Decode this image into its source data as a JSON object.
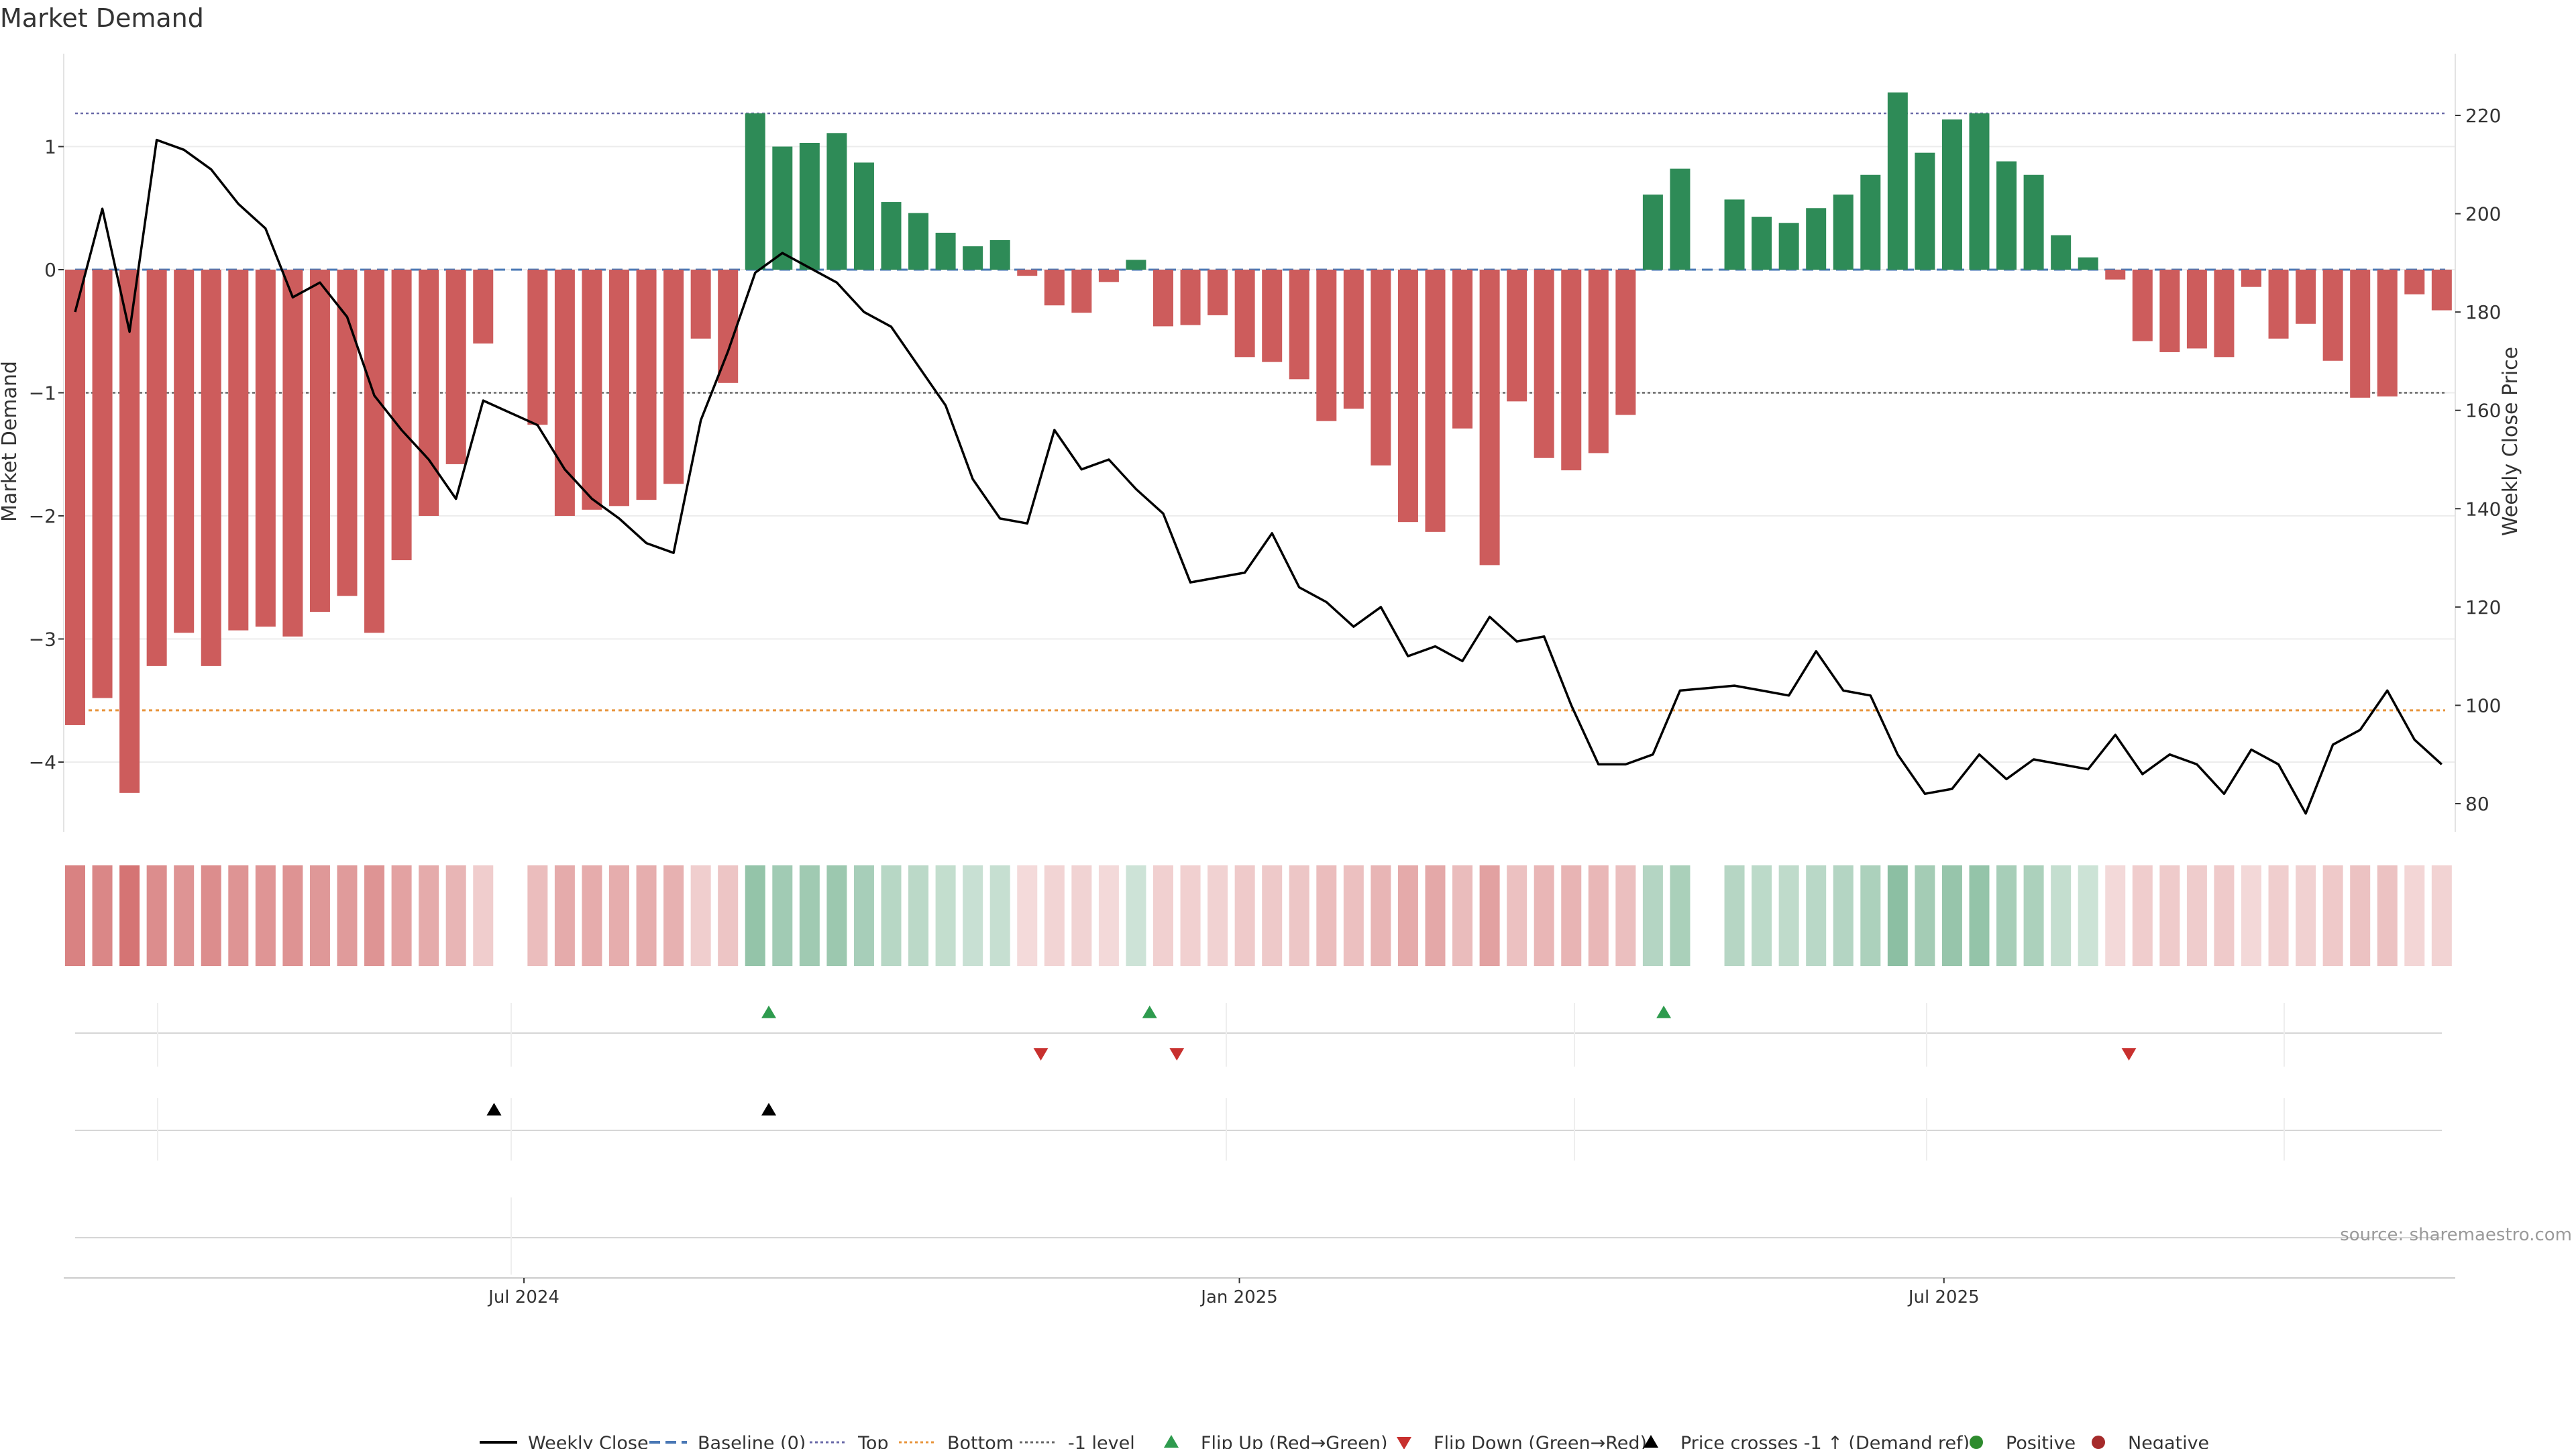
{
  "chart_data": {
    "type": "bar",
    "title": "Market Demand",
    "ylabel_left": "Market Demand",
    "ylabel_right": "Weekly Close Price",
    "ylim_left": [
      -4.6,
      1.75
    ],
    "ylim_right": [
      78,
      226
    ],
    "yticks_left": [
      1,
      0,
      -1,
      -2,
      -3,
      -4
    ],
    "ytick_labels_left": [
      "1",
      "0",
      "−1",
      "−2",
      "−3",
      "−4"
    ],
    "yticks_right": [
      220,
      200,
      180,
      160,
      140,
      120,
      100,
      80
    ],
    "ytick_labels_right": [
      "220",
      "200",
      "180",
      "160",
      "140",
      "120",
      "100",
      "80"
    ],
    "x_axis_labels": [
      {
        "label": "Jul 2024",
        "week": 16.5
      },
      {
        "label": "Jan 2025",
        "week": 42.8
      },
      {
        "label": "Jul 2025",
        "week": 68.7
      }
    ],
    "reference_lines": {
      "top": 1.27,
      "bottom": -3.58,
      "minus_one": -1.0,
      "baseline": 0
    },
    "weeks": [
      0,
      1,
      2,
      3,
      4,
      5,
      6,
      7,
      8,
      9,
      10,
      11,
      12,
      13,
      14,
      15,
      17,
      18,
      19,
      20,
      21,
      22,
      23,
      24,
      25,
      26,
      27,
      28,
      29,
      30,
      31,
      32,
      33,
      34,
      35,
      36,
      37,
      38,
      39,
      40,
      41,
      42,
      43,
      44,
      45,
      46,
      47,
      48,
      49,
      50,
      51,
      52,
      53,
      54,
      55,
      56,
      57,
      58,
      59,
      61,
      62,
      63,
      64,
      65,
      66,
      67,
      68,
      69,
      70,
      71,
      72,
      73,
      74,
      75,
      76,
      77,
      78,
      79,
      80,
      81,
      82,
      83,
      84,
      85,
      86,
      87
    ],
    "demand": [
      -3.7,
      -3.48,
      -4.25,
      -3.22,
      -2.95,
      -3.22,
      -2.93,
      -2.9,
      -2.98,
      -2.78,
      -2.65,
      -2.95,
      -2.36,
      -2.0,
      -1.58,
      -0.6,
      -1.26,
      -2.0,
      -1.95,
      -1.92,
      -1.87,
      -1.74,
      -0.56,
      -0.92,
      1.27,
      1.0,
      1.03,
      1.11,
      0.87,
      0.55,
      0.46,
      0.3,
      0.19,
      0.24,
      -0.05,
      -0.29,
      -0.35,
      -0.1,
      0.08,
      -0.46,
      -0.45,
      -0.37,
      -0.71,
      -0.75,
      -0.89,
      -1.23,
      -1.13,
      -1.59,
      -2.05,
      -2.13,
      -1.29,
      -2.4,
      -1.07,
      -1.53,
      -1.63,
      -1.49,
      -1.18,
      0.61,
      0.82,
      0.57,
      0.43,
      0.38,
      0.5,
      0.61,
      0.77,
      1.44,
      0.95,
      1.22,
      1.27,
      0.88,
      0.77,
      0.28,
      0.1,
      -0.08,
      -0.58,
      -0.67,
      -0.64,
      -0.71,
      -0.14,
      -0.56,
      -0.44,
      -0.74,
      -1.04,
      -1.03,
      -0.2,
      -0.33
    ],
    "price_weeks": [
      0,
      1,
      2,
      3,
      4,
      5,
      6,
      7,
      8,
      9,
      10,
      11,
      12,
      13,
      14,
      15,
      17,
      18,
      19,
      20,
      21,
      22,
      23,
      24,
      25,
      26,
      27,
      28,
      29,
      30,
      31,
      32,
      33,
      34,
      35,
      36,
      37,
      38,
      39,
      40,
      41,
      42,
      43,
      44,
      45,
      46,
      47,
      48,
      49,
      50,
      51,
      52,
      53,
      54,
      55,
      56,
      57,
      58,
      59,
      61,
      62,
      63,
      64,
      65,
      66,
      67,
      68,
      69,
      70,
      71,
      72,
      73,
      74,
      75,
      76,
      77,
      78,
      79,
      80,
      81,
      82,
      83,
      84,
      85,
      86,
      87
    ],
    "price": [
      180,
      201,
      176,
      215,
      213,
      209,
      202,
      197,
      183,
      186,
      179,
      163,
      156,
      150,
      142,
      162,
      157,
      148,
      142,
      138,
      133,
      131,
      158,
      172,
      188,
      192,
      189,
      186,
      180,
      177,
      169,
      161,
      146,
      138,
      137,
      156,
      148,
      150,
      144,
      139,
      125,
      126,
      127,
      135,
      124,
      121,
      116,
      120,
      110,
      112,
      109,
      118,
      113,
      114,
      100,
      88,
      88,
      90,
      103,
      104,
      103,
      102,
      111,
      103,
      102,
      90,
      82,
      83,
      90,
      85,
      89,
      88,
      87,
      94,
      86,
      90,
      88,
      82,
      91,
      88,
      78,
      92,
      95,
      103,
      93,
      88
    ],
    "annotations": {
      "flip_up_weeks": [
        25.5,
        39.5,
        58.4
      ],
      "flip_down_weeks": [
        35.5,
        40.5,
        75.5
      ],
      "price_cross_weeks": [
        15.4,
        25.5
      ]
    },
    "legend": [
      "Weekly Close",
      "Baseline (0)",
      "Top",
      "Bottom",
      "-1 level",
      "Flip Up (Red→Green)",
      "Flip Down (Green→Red)",
      "Price crosses -1 ↑ (Demand ref)",
      "Positive",
      "Negative"
    ],
    "legend_position": "bottom-center",
    "source_note": "source: sharemaestro.com"
  },
  "colors": {
    "negative": "#cd5c5c",
    "positive": "#2e8b57",
    "price_line": "#000000",
    "baseline": "#4a78b5",
    "top_line": "#6a6aa8",
    "bottom_line": "#e8953c",
    "minus_one_line": "#666666",
    "flip_up": "#2e9b4e",
    "flip_down": "#c8302e",
    "positive_dot": "#2e8b2e",
    "negative_dot": "#a52a2a"
  }
}
